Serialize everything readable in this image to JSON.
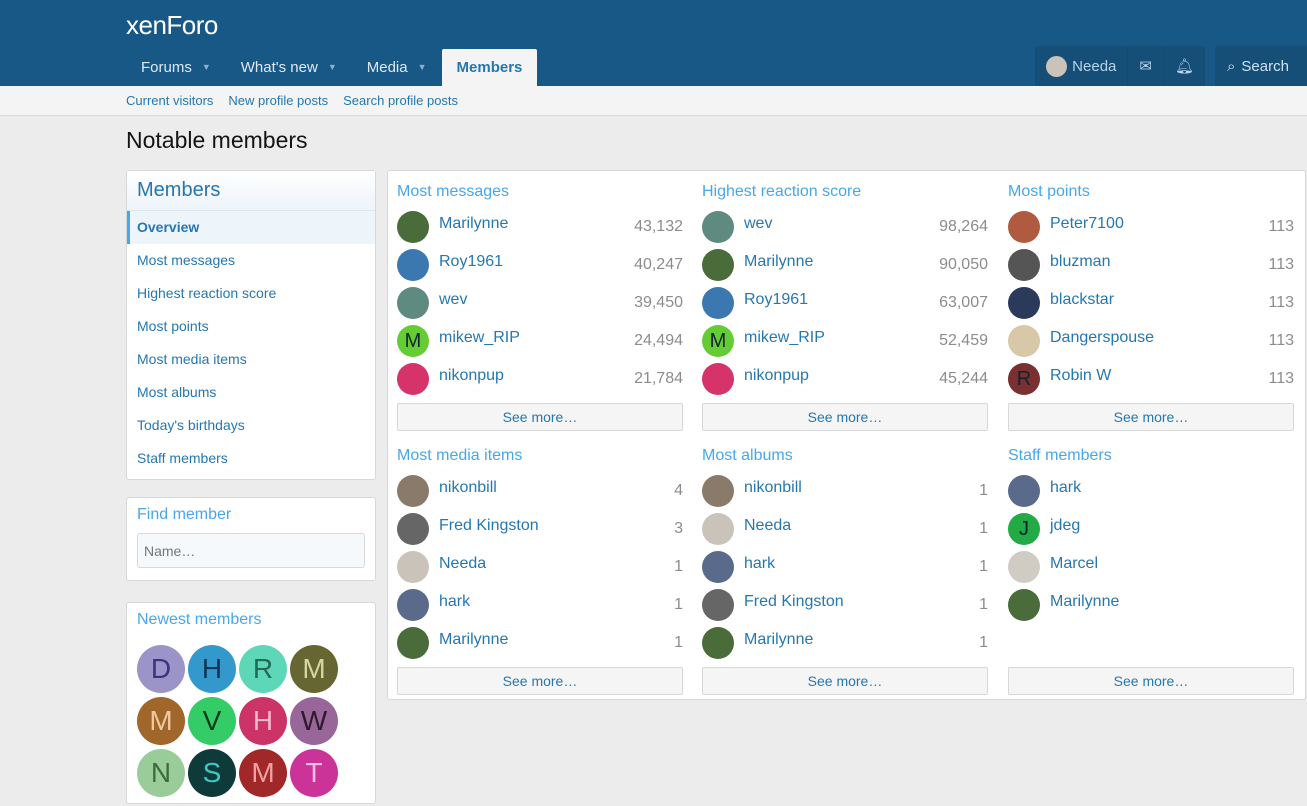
{
  "header": {
    "logo": "xenForo",
    "nav": [
      {
        "label": "Forums",
        "caret": true
      },
      {
        "label": "What's new",
        "caret": true
      },
      {
        "label": "Media",
        "caret": true
      },
      {
        "label": "Members",
        "caret": false,
        "active": true
      }
    ],
    "user": "Needa",
    "search": "Search"
  },
  "subnav": [
    "Current visitors",
    "New profile posts",
    "Search profile posts"
  ],
  "page_title": "Notable members",
  "sidebar": {
    "title": "Members",
    "items": [
      "Overview",
      "Most messages",
      "Highest reaction score",
      "Most points",
      "Most media items",
      "Most albums",
      "Today's birthdays",
      "Staff members"
    ]
  },
  "find": {
    "title": "Find member",
    "placeholder": "Name…"
  },
  "newest": {
    "title": "Newest members",
    "members": [
      {
        "l": "D",
        "bg": "#9b94c8",
        "fg": "#3a3480"
      },
      {
        "l": "H",
        "bg": "#3399cc",
        "fg": "#0f3550"
      },
      {
        "l": "R",
        "bg": "#5ed6b8",
        "fg": "#1d6b58"
      },
      {
        "l": "M",
        "bg": "#666633",
        "fg": "#d6d6a0"
      },
      {
        "l": "M",
        "bg": "#a0662a",
        "fg": "#f0c8a0"
      },
      {
        "l": "V",
        "bg": "#33cc66",
        "fg": "#0f3a1e"
      },
      {
        "l": "H",
        "bg": "#cc3366",
        "fg": "#f5b8cc"
      },
      {
        "l": "W",
        "bg": "#996699",
        "fg": "#2e1a2e"
      },
      {
        "l": "N",
        "bg": "#99cc99",
        "fg": "#3d6b3d"
      },
      {
        "l": "S",
        "bg": "#0f3a3a",
        "fg": "#3fc6c6"
      },
      {
        "l": "M",
        "bg": "#a02828",
        "fg": "#f0a0a0"
      },
      {
        "l": "T",
        "bg": "#cc3399",
        "fg": "#f5c0e0"
      }
    ]
  },
  "see_more": "See more…",
  "sections": [
    {
      "title": "Most messages",
      "rows": [
        {
          "name": "Marilynne",
          "count": "43,132",
          "bg": "#4a6b3a"
        },
        {
          "name": "Roy1961",
          "count": "40,247",
          "bg": "#3c78b0"
        },
        {
          "name": "wev",
          "count": "39,450",
          "bg": "#5e8a80"
        },
        {
          "name": "mikew_RIP",
          "count": "24,494",
          "bg": "#66cc33",
          "letter": "M"
        },
        {
          "name": "nikonpup",
          "count": "21,784",
          "bg": "#d6336a"
        }
      ]
    },
    {
      "title": "Highest reaction score",
      "rows": [
        {
          "name": "wev",
          "count": "98,264",
          "bg": "#5e8a80"
        },
        {
          "name": "Marilynne",
          "count": "90,050",
          "bg": "#4a6b3a"
        },
        {
          "name": "Roy1961",
          "count": "63,007",
          "bg": "#3c78b0"
        },
        {
          "name": "mikew_RIP",
          "count": "52,459",
          "bg": "#66cc33",
          "letter": "M"
        },
        {
          "name": "nikonpup",
          "count": "45,244",
          "bg": "#d6336a"
        }
      ]
    },
    {
      "title": "Most points",
      "rows": [
        {
          "name": "Peter7100",
          "count": "113",
          "bg": "#b05a40"
        },
        {
          "name": "bluzman",
          "count": "113",
          "bg": "#555555"
        },
        {
          "name": "blackstar",
          "count": "113",
          "bg": "#2b3a5a"
        },
        {
          "name": "Dangerspouse",
          "count": "113",
          "bg": "#d8c8a8"
        },
        {
          "name": "Robin W",
          "count": "113",
          "bg": "#7a3030",
          "letter": "R"
        }
      ]
    },
    {
      "title": "Most media items",
      "rows": [
        {
          "name": "nikonbill",
          "count": "4",
          "bg": "#8a7a6a"
        },
        {
          "name": "Fred Kingston",
          "count": "3",
          "bg": "#666666"
        },
        {
          "name": "Needa",
          "count": "1",
          "bg": "#c9c3ba"
        },
        {
          "name": "hark",
          "count": "1",
          "bg": "#5a6a8a"
        },
        {
          "name": "Marilynne",
          "count": "1",
          "bg": "#4a6b3a"
        }
      ]
    },
    {
      "title": "Most albums",
      "rows": [
        {
          "name": "nikonbill",
          "count": "1",
          "bg": "#8a7a6a"
        },
        {
          "name": "Needa",
          "count": "1",
          "bg": "#c9c3ba"
        },
        {
          "name": "hark",
          "count": "1",
          "bg": "#5a6a8a"
        },
        {
          "name": "Fred Kingston",
          "count": "1",
          "bg": "#666666"
        },
        {
          "name": "Marilynne",
          "count": "1",
          "bg": "#4a6b3a"
        }
      ]
    },
    {
      "title": "Staff members",
      "rows": [
        {
          "name": "hark",
          "bg": "#5a6a8a"
        },
        {
          "name": "jdeg",
          "bg": "#22aa44",
          "letter": "J"
        },
        {
          "name": "Marcel",
          "bg": "#d0ccc4"
        },
        {
          "name": "Marilynne",
          "bg": "#4a6b3a"
        }
      ]
    }
  ]
}
